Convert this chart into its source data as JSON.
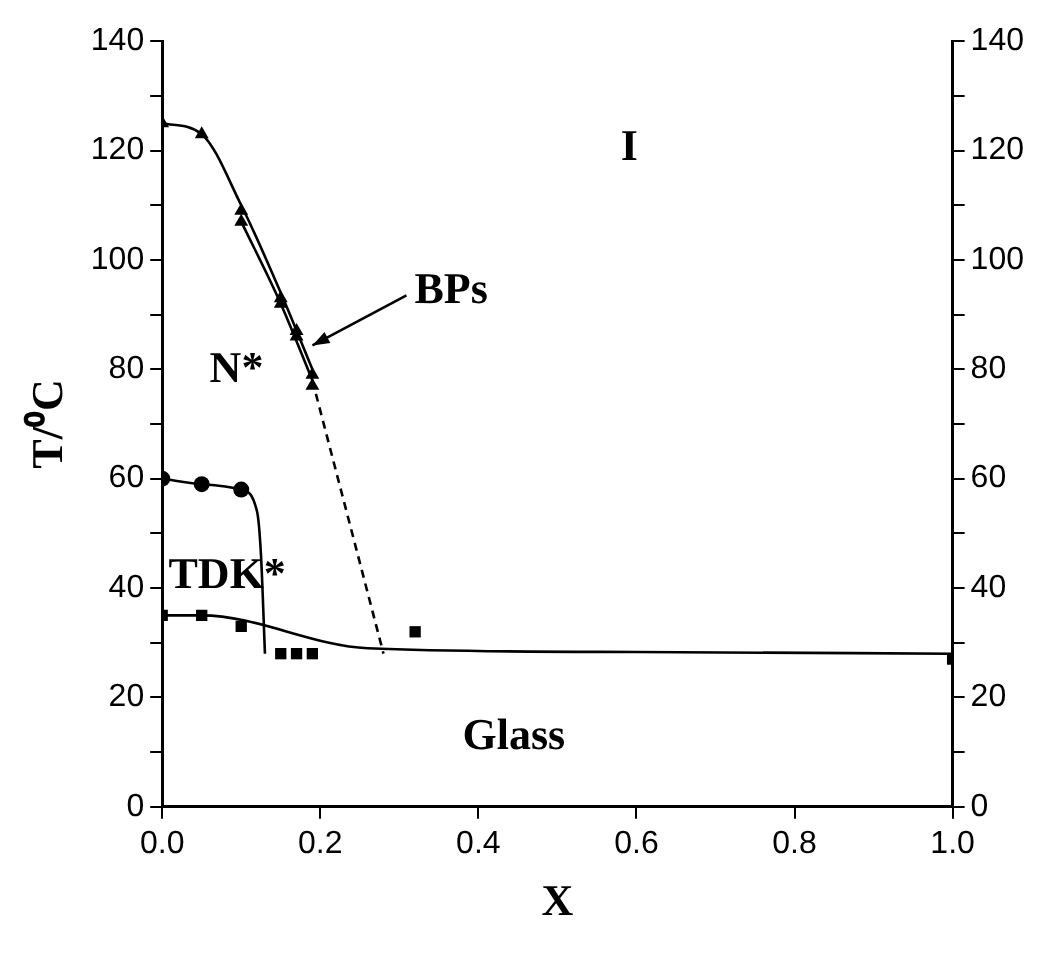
{
  "chart_data": {
    "type": "scatter",
    "xlabel": "X",
    "ylabel": "T/⁰C",
    "xlim": [
      0,
      1
    ],
    "xticks": [
      {
        "value": 0,
        "label": "0.0"
      },
      {
        "value": 0.2,
        "label": "0.2"
      },
      {
        "value": 0.4,
        "label": "0.4"
      },
      {
        "value": 0.6,
        "label": "0.6"
      },
      {
        "value": 0.8,
        "label": "0.8"
      },
      {
        "value": 1,
        "label": "1.0"
      }
    ],
    "ylim": [
      0,
      140
    ],
    "yticks": [
      0,
      {
        "value": 10,
        "label": null
      },
      20,
      {
        "value": 30,
        "label": null
      },
      40,
      {
        "value": 50,
        "label": null
      },
      60,
      {
        "value": 70,
        "label": null
      },
      80,
      {
        "value": 90,
        "label": null
      },
      100,
      {
        "value": 110,
        "label": null
      },
      120,
      {
        "value": 130,
        "label": null
      },
      140
    ],
    "y2lim": [
      0,
      140
    ],
    "y2ticks": [
      0,
      {
        "value": 10,
        "label": null
      },
      20,
      {
        "value": 30,
        "label": null
      },
      40,
      {
        "value": 50,
        "label": null
      },
      60,
      {
        "value": 70,
        "label": null
      },
      80,
      {
        "value": 90,
        "label": null
      },
      100,
      {
        "value": 110,
        "label": null
      },
      120,
      {
        "value": 130,
        "label": null
      },
      140
    ],
    "grid": false,
    "legend": false,
    "series": [
      {
        "type": "scatter",
        "marker": "triangle",
        "color": "#000000",
        "x": [
          0,
          0.05,
          0.1,
          0.15,
          0.17,
          0.19
        ],
        "values": [
          125,
          123,
          109,
          93,
          87,
          79
        ]
      },
      {
        "type": "scatter",
        "marker": "triangle",
        "color": "#000000",
        "x": [
          0.1,
          0.15,
          0.17,
          0.19
        ],
        "values": [
          107,
          92,
          86,
          77
        ]
      },
      {
        "type": "scatter",
        "marker": "circle",
        "color": "#000000",
        "x": [
          0,
          0.05,
          0.1
        ],
        "values": [
          60,
          59,
          58
        ]
      },
      {
        "type": "scatter",
        "marker": "square",
        "color": "#000000",
        "x": [
          0,
          0.05,
          0.1,
          0.15,
          0.17,
          0.19,
          0.32,
          1.0
        ],
        "values": [
          35,
          35,
          33,
          28,
          28,
          28,
          32,
          27
        ]
      },
      {
        "type": "line",
        "line_style": "solid",
        "color": "#000000",
        "x": [
          0,
          0.05,
          0.1,
          0.15,
          0.19
        ],
        "values": [
          125,
          123,
          110,
          94,
          80
        ]
      },
      {
        "type": "line",
        "line_style": "solid",
        "color": "#000000",
        "x": [
          0.1,
          0.15,
          0.19
        ],
        "values": [
          107,
          92,
          78
        ]
      },
      {
        "type": "line",
        "line_style": "dashed",
        "color": "#000000",
        "x": [
          0.19,
          0.28
        ],
        "values": [
          78,
          28
        ]
      },
      {
        "type": "line",
        "line_style": "solid",
        "color": "#000000",
        "x": [
          0,
          0.05,
          0.1,
          0.12,
          0.125,
          0.13
        ],
        "values": [
          60,
          59,
          58,
          54,
          46,
          28
        ]
      },
      {
        "type": "line",
        "line_style": "solid",
        "color": "#000000",
        "x": [
          0,
          0.05,
          0.26,
          0.6,
          1.0
        ],
        "values": [
          35,
          35,
          29,
          28.3,
          28
        ]
      }
    ],
    "annotations": [
      "I",
      "N*",
      "TDK*",
      "Glass",
      {
        "text": "BPs",
        "x": 0.18,
        "y": 84
      }
    ]
  }
}
